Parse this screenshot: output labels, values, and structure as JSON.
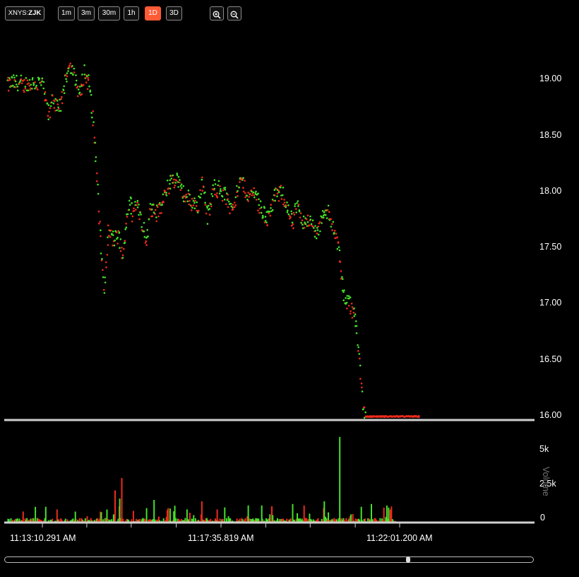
{
  "toolbar": {
    "exchange": "XNYS:",
    "symbol": "ZJK",
    "intervals": [
      "1m",
      "3m",
      "30m",
      "1h",
      "1D",
      "3D"
    ],
    "active_interval": "1D",
    "zoom_in_icon": "zoom-in-icon",
    "zoom_out_icon": "zoom-out-icon"
  },
  "colors": {
    "up": "#44e02a",
    "down": "#ee2a1c",
    "active_button": "#ff5a36",
    "background": "#000000",
    "axis_line": "#cfcfcf"
  },
  "chart_data": {
    "type": "scatter",
    "title": "",
    "price_axis": {
      "ticks": [
        "19.00",
        "18.50",
        "18.00",
        "17.50",
        "17.00",
        "16.50",
        "16.00"
      ],
      "tick_values": [
        19.0,
        18.5,
        18.0,
        17.5,
        17.0,
        16.5,
        16.0
      ],
      "ylim": [
        16.0,
        19.3
      ]
    },
    "volume_axis": {
      "label": "Volume",
      "ticks": [
        "5k",
        "2.5k",
        "0"
      ],
      "tick_values": [
        5000,
        2500,
        0
      ],
      "ylim": [
        0,
        6300
      ]
    },
    "time_axis": {
      "ticks": [
        "11:13:10.291 AM",
        "11:17:35.819 AM",
        "11:22:01.200 AM"
      ],
      "tick_seconds": [
        0,
        265.5,
        531
      ]
    },
    "price_series": {
      "name": "",
      "anchors_seconds": [
        0,
        10,
        15,
        24,
        30,
        40,
        48,
        56,
        62,
        70,
        78,
        86,
        92,
        98,
        106,
        113,
        120,
        125,
        130,
        134,
        138,
        142,
        148,
        156,
        160,
        166,
        170,
        176,
        182,
        188,
        194,
        200,
        206,
        212,
        222,
        232,
        238,
        246,
        256,
        264,
        272,
        280,
        288,
        296,
        306,
        316,
        326,
        336,
        346,
        356,
        366,
        372,
        378,
        384,
        388,
        392,
        400,
        408,
        416,
        424,
        432,
        440,
        448,
        456,
        464,
        470,
        476,
        480,
        486,
        492,
        496,
        500,
        504,
        508,
        512,
        518,
        524,
        530,
        534,
        538,
        544,
        550,
        556,
        560
      ],
      "anchors_price": [
        18.95,
        18.65,
        18.85,
        18.7,
        18.85,
        19.15,
        19.0,
        18.85,
        19.05,
        18.95,
        18.45,
        17.6,
        17.1,
        17.65,
        17.55,
        17.6,
        17.4,
        17.75,
        17.9,
        17.8,
        17.85,
        17.9,
        17.7,
        17.55,
        17.85,
        17.85,
        17.8,
        17.85,
        17.95,
        18.05,
        18.1,
        18.1,
        18.0,
        17.95,
        17.9,
        17.85,
        18.1,
        17.75,
        18.05,
        18.0,
        17.95,
        17.85,
        17.95,
        18.1,
        17.95,
        18.0,
        17.8,
        17.75,
        17.95,
        18.0,
        17.8,
        17.7,
        17.85,
        17.8,
        17.7,
        17.75,
        17.7,
        17.6,
        17.75,
        17.8,
        17.7,
        17.5,
        17.05,
        17.0,
        16.9,
        16.6,
        16.1,
        16.0,
        16.0,
        16.0,
        16.0,
        16.0,
        16.0,
        16.0,
        16.0,
        16.0,
        16.0,
        16.0,
        16.0,
        16.0,
        16.0,
        16.0,
        16.0,
        16.0
      ]
    },
    "volume_series": {
      "name": "Volume",
      "notable_bars": [
        {
          "t": 4,
          "v": 1100,
          "dir": "up"
        },
        {
          "t": 48,
          "v": 750,
          "dir": "up"
        },
        {
          "t": 107,
          "v": 2300,
          "dir": "down"
        },
        {
          "t": 114,
          "v": 1700,
          "dir": "up"
        },
        {
          "t": 117,
          "v": 3200,
          "dir": "down"
        },
        {
          "t": 165,
          "v": 1600,
          "dir": "up"
        },
        {
          "t": 186,
          "v": 1000,
          "dir": "down"
        },
        {
          "t": 236,
          "v": 1500,
          "dir": "down"
        },
        {
          "t": 305,
          "v": 1200,
          "dir": "up"
        },
        {
          "t": 325,
          "v": 1200,
          "dir": "up"
        },
        {
          "t": 371,
          "v": 1300,
          "dir": "up"
        },
        {
          "t": 388,
          "v": 1200,
          "dir": "down"
        },
        {
          "t": 418,
          "v": 1500,
          "dir": "up"
        },
        {
          "t": 441,
          "v": 6200,
          "dir": "up"
        },
        {
          "t": 473,
          "v": 1100,
          "dir": "up"
        },
        {
          "t": 488,
          "v": 1300,
          "dir": "up"
        },
        {
          "t": 511,
          "v": 1200,
          "dir": "up"
        },
        {
          "t": 516,
          "v": 900,
          "dir": "down"
        }
      ]
    }
  },
  "scrollbar": {
    "position": 0.75
  }
}
